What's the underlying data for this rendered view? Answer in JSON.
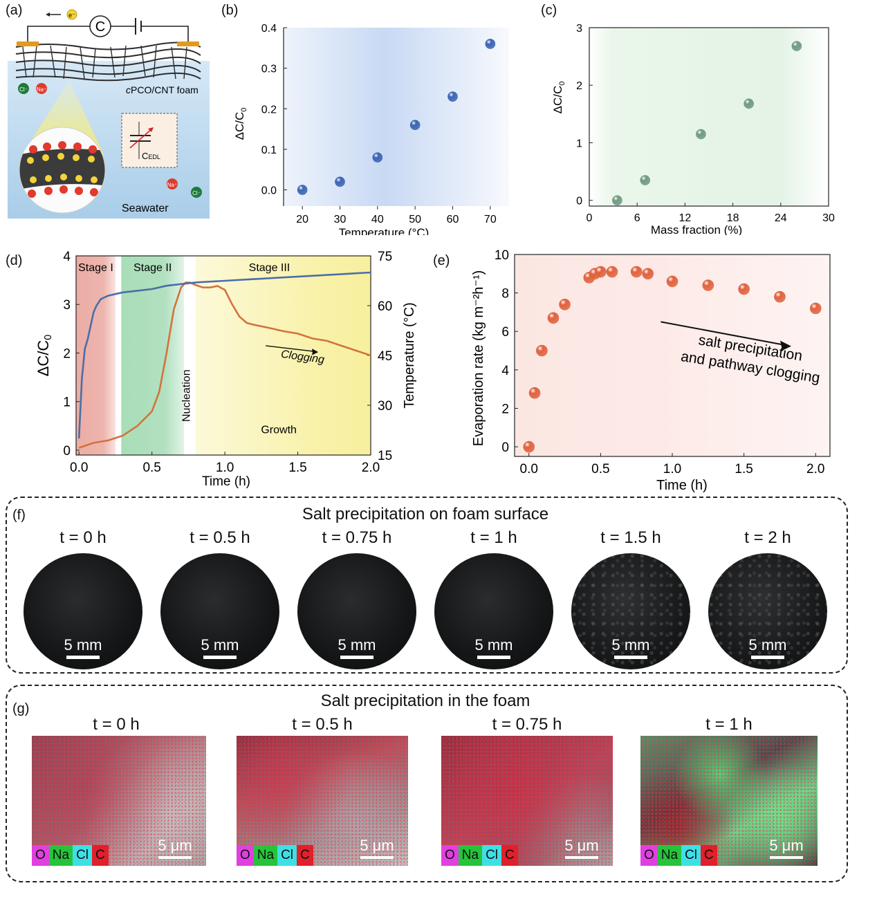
{
  "panel_labels": {
    "a": "(a)",
    "b": "(b)",
    "c": "(c)",
    "d": "(d)",
    "e": "(e)",
    "f": "(f)",
    "g": "(g)"
  },
  "schematic": {
    "electron": "e⁻",
    "meter": "C",
    "foam_label_italic": "c",
    "foam_label": "PCO/CNT foam",
    "cl": "Cl⁻",
    "na": "Na⁺",
    "cedl": "C",
    "cedl_sub": "EDL",
    "seawater": "Seawater",
    "colors": {
      "water": "#cfe3f3",
      "foam": "#3b3b3b",
      "na": "#e03a2e",
      "cl": "#1f7a3a",
      "electron": "#f2d33a",
      "electrode": "#e39a1c"
    }
  },
  "chart_data": [
    {
      "id": "b",
      "type": "scatter",
      "xlabel": "Temperature (°C)",
      "ylabel": "ΔC/C",
      "ylabel_sub": "0",
      "xlim": [
        15,
        75
      ],
      "ylim": [
        -0.04,
        0.4
      ],
      "xticks": [
        20,
        30,
        40,
        50,
        60,
        70
      ],
      "yticks": [
        "0.0",
        "0.1",
        "0.2",
        "0.3",
        "0.4"
      ],
      "x": [
        20,
        30,
        40,
        50,
        60,
        70
      ],
      "y": [
        0.0,
        0.02,
        0.08,
        0.16,
        0.23,
        0.36
      ],
      "color": "#3c64b4"
    },
    {
      "id": "c",
      "type": "scatter",
      "xlabel": "Mass fraction (%)",
      "ylabel": "ΔC/C",
      "ylabel_sub": "0",
      "xlim": [
        0,
        30
      ],
      "ylim": [
        -0.1,
        3
      ],
      "xticks": [
        "0",
        "6",
        "12",
        "18",
        "24",
        "30"
      ],
      "yticks": [
        "0",
        "1",
        "2",
        "3"
      ],
      "x": [
        3.5,
        7,
        14,
        20,
        26
      ],
      "y": [
        0.0,
        0.35,
        1.15,
        1.68,
        2.68
      ],
      "color": "#6f9a80"
    },
    {
      "id": "d",
      "type": "line",
      "xlabel": "Time (h)",
      "ylabel": "ΔC/C",
      "ylabel_sub": "0",
      "ylabel_right": "Temperature (°C)",
      "xlim": [
        -0.02,
        2.0
      ],
      "ylim": [
        -0.1,
        4.0
      ],
      "ylim_right": [
        15,
        75
      ],
      "xticks": [
        "0.0",
        "0.5",
        "1.0",
        "1.5",
        "2.0"
      ],
      "yticks": [
        "0",
        "1",
        "2",
        "3",
        "4"
      ],
      "yticks_right": [
        "15",
        "30",
        "45",
        "60",
        "75"
      ],
      "stages": [
        {
          "label": "Stage I",
          "from": -0.02,
          "to": 0.25,
          "color": "#e9a39a"
        },
        {
          "label": "Stage II",
          "from": 0.29,
          "to": 0.72,
          "color": "#9fd9b0"
        },
        {
          "label": "Stage III",
          "from": 0.8,
          "to": 2.0,
          "color": "#f7ee93"
        }
      ],
      "annotations": {
        "nucleation": "Nucleation",
        "growth": "Growth",
        "clogging": "Clogging"
      },
      "series": [
        {
          "axis": "left",
          "color": "#d2733d",
          "x": [
            0,
            0.05,
            0.1,
            0.2,
            0.3,
            0.4,
            0.5,
            0.55,
            0.6,
            0.65,
            0.7,
            0.73,
            0.76,
            0.8,
            0.85,
            0.9,
            0.95,
            1.0,
            1.05,
            1.1,
            1.15,
            1.2,
            1.3,
            1.4,
            1.5,
            1.6,
            1.7,
            1.8,
            1.9,
            2.0
          ],
          "y": [
            0.05,
            0.1,
            0.15,
            0.2,
            0.3,
            0.5,
            0.8,
            1.2,
            2.0,
            2.9,
            3.35,
            3.45,
            3.45,
            3.4,
            3.35,
            3.35,
            3.38,
            3.3,
            3.0,
            2.75,
            2.62,
            2.58,
            2.52,
            2.45,
            2.4,
            2.3,
            2.25,
            2.15,
            2.05,
            1.95
          ]
        },
        {
          "axis": "right",
          "color": "#4a6ea8",
          "x": [
            0,
            0.02,
            0.04,
            0.06,
            0.08,
            0.1,
            0.12,
            0.15,
            0.2,
            0.25,
            0.3,
            0.4,
            0.5,
            0.6,
            0.7,
            0.8,
            1.0,
            1.2,
            1.4,
            1.6,
            1.8,
            2.0
          ],
          "y": [
            20,
            38,
            47,
            50,
            54,
            58,
            60,
            62,
            63,
            63.5,
            64,
            64.5,
            65,
            66,
            66.5,
            67,
            67.5,
            68,
            68.5,
            69,
            69.5,
            70
          ]
        }
      ]
    },
    {
      "id": "e",
      "type": "scatter",
      "xlabel": "Time (h)",
      "ylabel": "Evaporation rate (kg m⁻²h⁻¹)",
      "xlim": [
        -0.1,
        2.1
      ],
      "ylim": [
        -0.5,
        10
      ],
      "xticks": [
        "0.0",
        "0.5",
        "1.0",
        "1.5",
        "2.0"
      ],
      "yticks": [
        "0",
        "2",
        "4",
        "6",
        "8",
        "10"
      ],
      "x": [
        0.0,
        0.04,
        0.09,
        0.17,
        0.25,
        0.42,
        0.46,
        0.5,
        0.58,
        0.75,
        0.83,
        1.0,
        1.25,
        1.5,
        1.75,
        2.0
      ],
      "y": [
        0.0,
        2.8,
        5.0,
        6.7,
        7.4,
        8.8,
        9.0,
        9.1,
        9.1,
        9.1,
        9.0,
        8.6,
        8.4,
        8.2,
        7.8,
        7.2
      ],
      "annotation": [
        "salt precipitation",
        "and pathway clogging"
      ],
      "color": "#e0623e"
    }
  ],
  "panel_f": {
    "title": "Salt precipitation on foam surface",
    "scale": "5 mm",
    "times": [
      "t = 0 h",
      "t = 0.5 h",
      "t = 0.75 h",
      "t = 1 h",
      "t = 1.5 h",
      "t = 2 h"
    ]
  },
  "panel_g": {
    "title": "Salt precipitation in the foam",
    "scale": "5 μm",
    "times": [
      "t = 0 h",
      "t = 0.5 h",
      "t = 0.75 h",
      "t = 1 h"
    ],
    "legend": [
      {
        "el": "O",
        "color": "#e040e0"
      },
      {
        "el": "Na",
        "color": "#26c43a"
      },
      {
        "el": "Cl",
        "color": "#3ee0e6"
      },
      {
        "el": "C",
        "color": "#e0202a"
      }
    ]
  }
}
